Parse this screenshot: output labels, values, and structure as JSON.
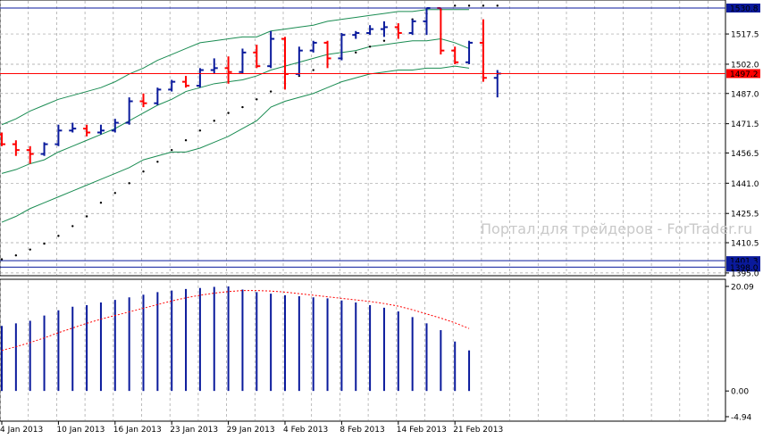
{
  "watermark": "Портал для трейдеров - ForTrader.ru",
  "chart_data": [
    {
      "type": "bar",
      "subtype": "ohlc-with-bollinger-bands-and-parabolic-sar",
      "ylim": [
        1394.5,
        1534
      ],
      "ytick_labels": [
        "1517.5",
        "1502.0",
        "1487.0",
        "1471.5",
        "1456.5",
        "1441.0",
        "1425.5",
        "1410.5",
        "1395.0"
      ],
      "ytick_values": [
        1517.5,
        1502.0,
        1487.0,
        1471.5,
        1456.5,
        1441.0,
        1425.5,
        1410.5,
        1395.0
      ],
      "price_marks": [
        {
          "label": "1530.8",
          "value": 1530.8,
          "color": "#0a1a9c"
        },
        {
          "label": "1497.2",
          "value": 1497.2,
          "color": "#ff0000"
        },
        {
          "label": "1401.3",
          "value": 1401.3,
          "color": "#0a1a9c"
        },
        {
          "label": "1398.0",
          "value": 1398.0,
          "color": "#0a1a9c"
        }
      ],
      "x_labels": [
        "4 Jan 2013",
        "10 Jan 2013",
        "16 Jan 2013",
        "23 Jan 2013",
        "29 Jan 2013",
        "4 Feb 2013",
        "8 Feb 2013",
        "14 Feb 2013",
        "21 Feb 2013"
      ],
      "x_label_bar_index": [
        0,
        4,
        8,
        12,
        16,
        20,
        24,
        28,
        32
      ],
      "colors": {
        "up": "#0a1a9c",
        "down": "#ff0000",
        "bands": "#1a8c52",
        "sar": "#000000",
        "grid": "#a0a0a0"
      },
      "ohlc": [
        [
          1466,
          1467,
          1460,
          1461
        ],
        [
          1461,
          1463,
          1455,
          1458
        ],
        [
          1458,
          1460,
          1451,
          1456
        ],
        [
          1456,
          1462,
          1455,
          1461
        ],
        [
          1461,
          1471,
          1460,
          1468
        ],
        [
          1468,
          1472,
          1467,
          1469
        ],
        [
          1469,
          1471,
          1465,
          1467
        ],
        [
          1467,
          1471,
          1466,
          1468
        ],
        [
          1468,
          1474,
          1467,
          1472
        ],
        [
          1472,
          1485,
          1471,
          1483
        ],
        [
          1483,
          1487,
          1480,
          1482
        ],
        [
          1482,
          1490,
          1481,
          1489
        ],
        [
          1489,
          1494,
          1488,
          1493
        ],
        [
          1493,
          1496,
          1490,
          1491
        ],
        [
          1491,
          1500,
          1490,
          1499
        ],
        [
          1499,
          1505,
          1497,
          1500
        ],
        [
          1500,
          1506,
          1492,
          1498
        ],
        [
          1498,
          1510,
          1497,
          1508
        ],
        [
          1508,
          1512,
          1500,
          1501
        ],
        [
          1501,
          1519,
          1500,
          1515
        ],
        [
          1515,
          1516,
          1489,
          1497
        ],
        [
          1497,
          1511,
          1496,
          1509
        ],
        [
          1509,
          1514,
          1508,
          1513
        ],
        [
          1513,
          1514,
          1500,
          1505
        ],
        [
          1505,
          1518,
          1504,
          1517
        ],
        [
          1517,
          1519,
          1515,
          1518
        ],
        [
          1518,
          1522,
          1517,
          1520
        ],
        [
          1520,
          1524,
          1516,
          1521
        ],
        [
          1521,
          1523,
          1515,
          1518
        ],
        [
          1518,
          1525,
          1517,
          1524
        ],
        [
          1524,
          1531,
          1517,
          1530.8
        ],
        [
          1530.8,
          1531,
          1507,
          1509
        ],
        [
          1509,
          1511,
          1502,
          1503
        ],
        [
          1503,
          1514,
          1502,
          1513
        ],
        [
          1513,
          1525,
          1493,
          1495
        ],
        [
          1495,
          1499,
          1485,
          1497.2
        ]
      ],
      "bb_upper": [
        1471,
        1474,
        1478,
        1481,
        1484,
        1486,
        1488,
        1490,
        1493,
        1497,
        1500,
        1504,
        1507,
        1510,
        1513,
        1514,
        1515,
        1516,
        1516,
        1519,
        1520,
        1521,
        1522,
        1524,
        1525,
        1526,
        1527,
        1528,
        1529,
        1529,
        1530,
        1530,
        1530,
        1530
      ],
      "bb_middle": [
        1446,
        1448,
        1451,
        1453,
        1457,
        1460,
        1463,
        1466,
        1469,
        1473,
        1477,
        1481,
        1484,
        1488,
        1490,
        1492,
        1493,
        1494,
        1496,
        1499,
        1501,
        1503,
        1505,
        1507,
        1508,
        1509,
        1511,
        1512,
        1513,
        1514,
        1514,
        1515,
        1513,
        1510
      ],
      "bb_lower": [
        1421,
        1424,
        1428,
        1431,
        1434,
        1437,
        1440,
        1443,
        1446,
        1449,
        1453,
        1455,
        1457,
        1457,
        1459,
        1462,
        1465,
        1469,
        1473,
        1480,
        1483,
        1485,
        1487,
        1490,
        1493,
        1495,
        1497,
        1498,
        1499,
        1499,
        1500,
        1500,
        1501,
        1500
      ],
      "sar": [
        1402,
        1404,
        1407,
        1410,
        1414,
        1419,
        1424,
        1431,
        1436,
        1441,
        1447,
        1452,
        1458,
        1463,
        1468,
        1473,
        1477,
        1480,
        1484,
        1488,
        1492,
        1496,
        1499,
        1502,
        1505,
        1508,
        1511,
        1514,
        1520,
        1525,
        1528,
        1530,
        1532,
        1532,
        1532,
        1532
      ]
    },
    {
      "type": "bar",
      "subtype": "histogram-with-signal-line",
      "ylim": [
        -4.94,
        20.09
      ],
      "ytick_labels": [
        "20.09",
        "0.00",
        "-4.94"
      ],
      "ytick_values": [
        20.09,
        0.0,
        -4.94
      ],
      "values": [
        12.5,
        13.0,
        13.5,
        14.5,
        15.5,
        16.2,
        16.5,
        17.0,
        17.5,
        18.0,
        18.5,
        19.0,
        19.3,
        19.6,
        19.8,
        20.0,
        20.09,
        19.5,
        19.0,
        18.7,
        18.4,
        18.2,
        18.0,
        17.8,
        17.4,
        17.0,
        16.5,
        16.0,
        15.3,
        14.2,
        13.0,
        11.7,
        9.5,
        7.8
      ],
      "signal": [
        7.8,
        8.5,
        9.3,
        10.2,
        11.2,
        12.1,
        13.0,
        13.8,
        14.5,
        15.2,
        15.9,
        16.6,
        17.3,
        17.9,
        18.4,
        18.8,
        19.1,
        19.3,
        19.3,
        19.2,
        19.0,
        18.7,
        18.4,
        18.1,
        17.8,
        17.5,
        17.2,
        16.8,
        16.3,
        15.6,
        14.8,
        14.0,
        13.1,
        12.0
      ],
      "colors": {
        "bars": "#0a1a9c",
        "signal": "#ff0000"
      }
    }
  ]
}
